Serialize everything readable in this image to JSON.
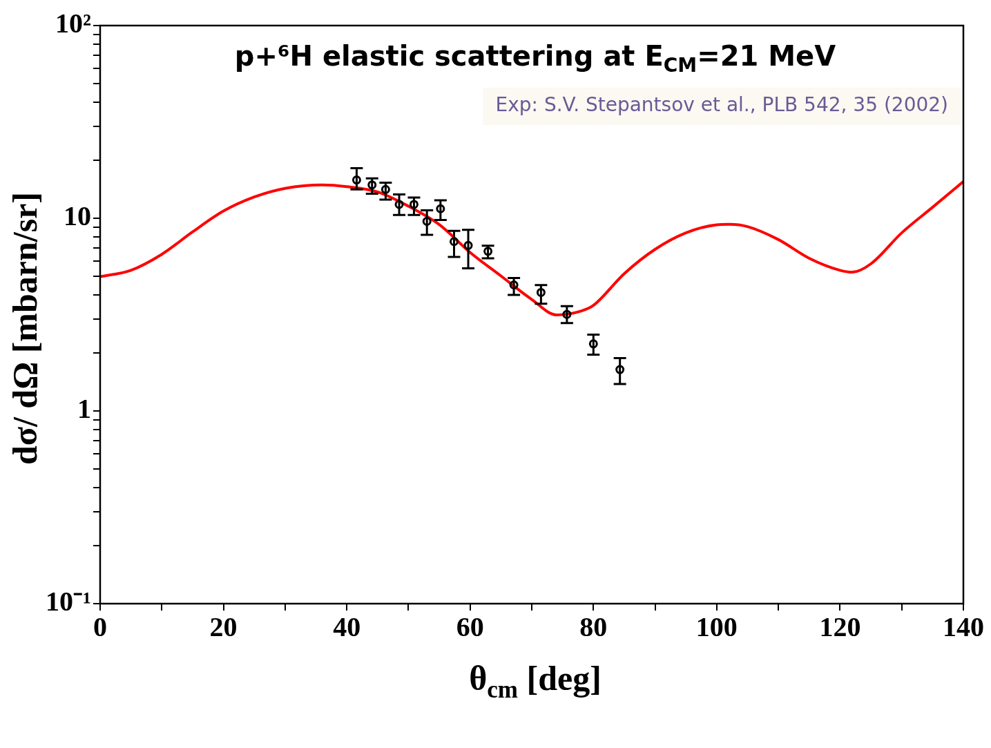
{
  "chart_data": {
    "type": "scatter",
    "title": "p+⁶H elastic scattering at E$_{CM}$=21 MeV",
    "xlabel": "θ$_{cm}$ [deg]",
    "ylabel": "dσ/ dΩ [mbarn/sr]",
    "annotations": [
      "Exp: S.V. Stepantsov et al., PLB 542, 35 (2002)"
    ],
    "log": "y",
    "grid": false,
    "legend": false,
    "xlim": [
      0,
      140
    ],
    "ylim": [
      0.1,
      100
    ],
    "xticks": [
      0,
      {
        "value": 10,
        "label": null
      },
      20,
      {
        "value": 30,
        "label": null
      },
      40,
      {
        "value": 50,
        "label": null
      },
      60,
      {
        "value": 70,
        "label": null
      },
      80,
      {
        "value": 90,
        "label": null
      },
      100,
      {
        "value": 110,
        "label": null
      },
      120,
      {
        "value": 130,
        "label": null
      },
      140
    ],
    "yticks": [
      {
        "value": 0.1,
        "label": "10⁻¹"
      },
      {
        "value": 0.2,
        "label": null
      },
      {
        "value": 0.3,
        "label": null
      },
      {
        "value": 0.4,
        "label": null
      },
      {
        "value": 0.5,
        "label": null
      },
      {
        "value": 0.6,
        "label": null
      },
      {
        "value": 0.7,
        "label": null
      },
      {
        "value": 0.8,
        "label": null
      },
      {
        "value": 0.9,
        "label": null
      },
      1,
      {
        "value": 2,
        "label": null
      },
      {
        "value": 3,
        "label": null
      },
      {
        "value": 4,
        "label": null
      },
      {
        "value": 5,
        "label": null
      },
      {
        "value": 6,
        "label": null
      },
      {
        "value": 7,
        "label": null
      },
      {
        "value": 8,
        "label": null
      },
      {
        "value": 9,
        "label": null
      },
      10,
      {
        "value": 20,
        "label": null
      },
      {
        "value": 30,
        "label": null
      },
      {
        "value": 40,
        "label": null
      },
      {
        "value": 50,
        "label": null
      },
      {
        "value": 60,
        "label": null
      },
      {
        "value": 70,
        "label": null
      },
      {
        "value": 80,
        "label": null
      },
      {
        "value": 90,
        "label": null
      },
      {
        "value": 100,
        "label": "10²"
      }
    ],
    "series": [
      {
        "type": "line",
        "color": "#ff0000",
        "marker": "none",
        "line_style": "solid",
        "x": [
          0,
          5,
          10,
          15,
          20,
          25,
          30,
          36,
          40,
          45,
          50,
          55,
          60,
          65,
          70,
          74,
          78,
          80,
          85,
          90,
          95,
          100,
          102,
          105,
          110,
          115,
          120,
          122,
          125,
          130,
          135,
          140
        ],
        "values": [
          4.97,
          5.37,
          6.5,
          8.5,
          10.9,
          12.9,
          14.3,
          14.9,
          14.6,
          13.7,
          11.55,
          9.27,
          6.65,
          5.02,
          3.79,
          3.15,
          3.3,
          3.53,
          5.16,
          6.9,
          8.4,
          9.25,
          9.3,
          9.05,
          7.75,
          6.2,
          5.37,
          5.25,
          5.8,
          8.4,
          11.4,
          15.5
        ]
      },
      {
        "type": "scatter",
        "color": "#000000",
        "marker": "circle",
        "x": [
          41.6,
          44.1,
          46.3,
          48.5,
          50.9,
          53.0,
          55.2,
          57.4,
          59.7,
          62.9,
          67.1,
          71.5,
          75.7,
          80.0,
          84.3
        ],
        "values": [
          15.8,
          14.9,
          14.1,
          11.8,
          11.8,
          9.64,
          11.2,
          7.57,
          7.23,
          6.74,
          4.51,
          4.12,
          3.17,
          2.23,
          1.64
        ],
        "errors": [
          [
            14.1,
            18.2
          ],
          [
            13.4,
            16.1
          ],
          [
            12.5,
            15.3
          ],
          [
            10.4,
            13.3
          ],
          [
            10.4,
            12.8
          ],
          [
            8.2,
            11.0
          ],
          [
            9.8,
            12.4
          ],
          [
            6.3,
            8.6
          ],
          [
            5.5,
            8.7
          ],
          [
            6.2,
            7.2
          ],
          [
            4.0,
            4.9
          ],
          [
            3.6,
            4.5
          ],
          [
            2.86,
            3.5
          ],
          [
            1.96,
            2.49
          ],
          [
            1.38,
            1.88
          ]
        ]
      }
    ]
  }
}
